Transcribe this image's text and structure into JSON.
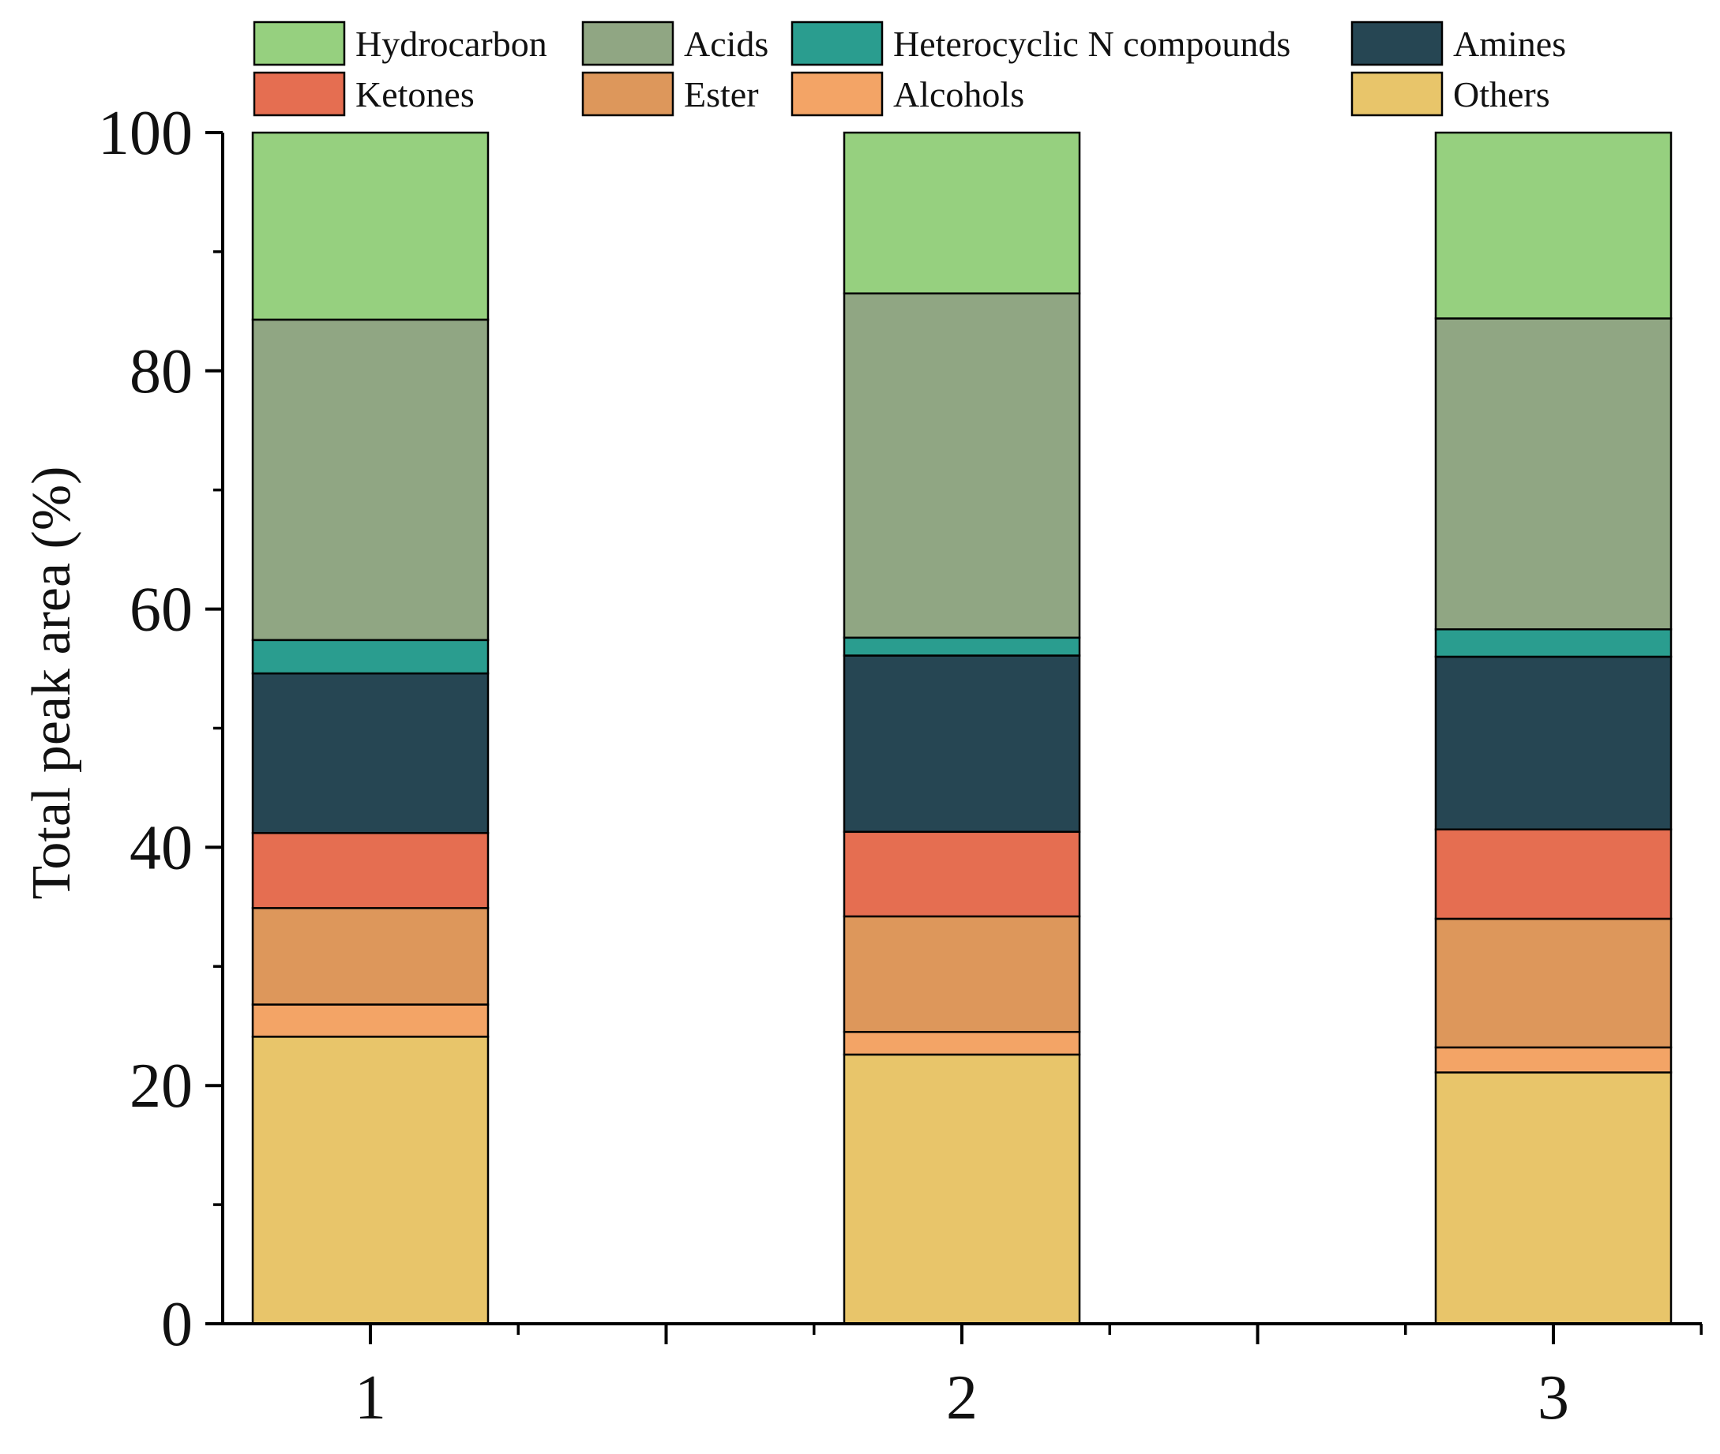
{
  "chart_data": {
    "type": "bar",
    "stacked": true,
    "percent": true,
    "categories": [
      "1",
      "2",
      "3"
    ],
    "series": [
      {
        "name": "Others",
        "color": "#E8C56A",
        "values": [
          24.1,
          22.6,
          21.1
        ]
      },
      {
        "name": "Alcohols",
        "color": "#F3A466",
        "values": [
          2.7,
          1.9,
          2.1
        ]
      },
      {
        "name": "Ester",
        "color": "#DD975B",
        "values": [
          8.1,
          9.7,
          10.8
        ]
      },
      {
        "name": "Ketones",
        "color": "#E56E51",
        "values": [
          6.3,
          7.1,
          7.5
        ]
      },
      {
        "name": "Amines",
        "color": "#264653",
        "values": [
          13.4,
          14.8,
          14.5
        ]
      },
      {
        "name": "Heterocyclic N compounds",
        "color": "#2A9D8F",
        "values": [
          2.8,
          1.5,
          2.3
        ]
      },
      {
        "name": "Acids",
        "color": "#90A683",
        "values": [
          26.9,
          28.9,
          26.1
        ]
      },
      {
        "name": "Hydrocarbon",
        "color": "#96D07F",
        "values": [
          15.7,
          13.5,
          15.6
        ]
      }
    ],
    "legend_order": [
      "Hydrocarbon",
      "Acids",
      "Heterocyclic N compounds",
      "Amines",
      "Ketones",
      "Ester",
      "Alcohols",
      "Others"
    ],
    "title": "",
    "xlabel": "",
    "ylabel": "Total peak area (%)",
    "ylim": [
      0,
      100
    ],
    "yticks": [
      0,
      20,
      40,
      60,
      80,
      100
    ],
    "grid": false,
    "legend_position": "top"
  }
}
